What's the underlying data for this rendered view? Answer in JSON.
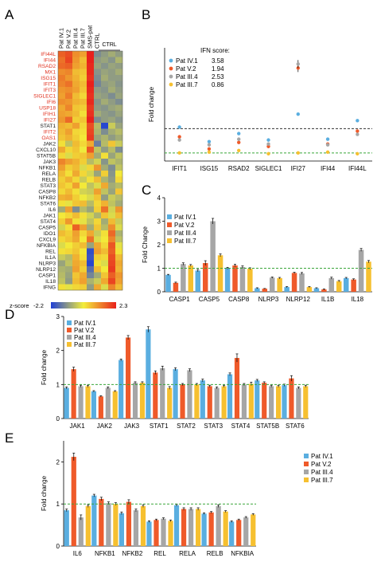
{
  "panel_labels": [
    "A",
    "B",
    "C",
    "D",
    "E"
  ],
  "colors": {
    "pat_iv1": "#5aaee0",
    "pat_v2": "#ef5a2a",
    "pat_iii4": "#a6a6a6",
    "pat_iii7": "#f6c030",
    "ref_line_green": "#3aa63a",
    "ref_line_black": "#333333"
  },
  "chart_data": [
    {
      "panel": "A",
      "type": "heatmap",
      "columns": [
        "Pat IV.1",
        "Pat V.2",
        "Pat III.4",
        "Pat III.7",
        "SMS-pat",
        "CTRL",
        "",
        "",
        ""
      ],
      "ctrl_label": "CTRL",
      "colorbar": {
        "label": "z-score",
        "min_label": "-2.2",
        "max_label": "2.3",
        "min": -2.2,
        "max": 2.3
      },
      "rows": [
        {
          "gene": "IFI44L",
          "red": true,
          "values": [
            1.6,
            1.8,
            1.1,
            0.9,
            2.3,
            -1.2,
            -1.0,
            -0.8,
            -1.0
          ]
        },
        {
          "gene": "IFI44",
          "red": true,
          "values": [
            1.4,
            1.9,
            1.0,
            0.6,
            2.3,
            -1.0,
            -0.9,
            -1.1,
            -0.7
          ]
        },
        {
          "gene": "RSAD2",
          "red": true,
          "values": [
            1.5,
            1.6,
            0.9,
            0.7,
            2.2,
            -0.9,
            -1.1,
            -0.9,
            -1.0
          ]
        },
        {
          "gene": "MX1",
          "red": true,
          "values": [
            1.1,
            1.2,
            0.6,
            0.5,
            2.2,
            -1.1,
            -0.9,
            -1.0,
            -0.8
          ]
        },
        {
          "gene": "ISG15",
          "red": true,
          "values": [
            1.3,
            1.0,
            0.7,
            0.4,
            2.1,
            -1.2,
            -0.8,
            -1.0,
            -1.0
          ]
        },
        {
          "gene": "IFIT1",
          "red": true,
          "values": [
            1.2,
            1.4,
            0.8,
            0.6,
            2.3,
            -1.3,
            -1.0,
            -0.9,
            -1.1
          ]
        },
        {
          "gene": "IFIT3",
          "red": true,
          "values": [
            1.0,
            1.1,
            0.9,
            0.5,
            2.2,
            -1.0,
            -1.1,
            -0.8,
            -1.0
          ]
        },
        {
          "gene": "SIGLEC1",
          "red": true,
          "values": [
            0.9,
            1.3,
            0.6,
            0.3,
            2.1,
            -0.9,
            -1.0,
            -1.2,
            -0.9
          ]
        },
        {
          "gene": "IFI6",
          "red": true,
          "values": [
            1.1,
            1.0,
            0.7,
            0.6,
            2.2,
            -1.1,
            -0.8,
            -1.0,
            -1.2
          ]
        },
        {
          "gene": "USP18",
          "red": true,
          "values": [
            0.8,
            1.2,
            0.5,
            0.4,
            2.0,
            -1.0,
            -1.1,
            -0.9,
            -0.8
          ]
        },
        {
          "gene": "IFIH1",
          "red": true,
          "values": [
            0.9,
            0.8,
            0.6,
            0.2,
            2.1,
            -0.8,
            -1.0,
            -1.1,
            -0.9
          ]
        },
        {
          "gene": "IFI27",
          "red": true,
          "values": [
            1.0,
            1.5,
            0.4,
            0.5,
            2.3,
            -1.2,
            -1.0,
            -0.9,
            -1.1
          ]
        },
        {
          "gene": "STAT1",
          "red": false,
          "values": [
            0.7,
            0.6,
            0.9,
            0.3,
            1.8,
            -0.6,
            -2.1,
            -0.4,
            -0.9
          ]
        },
        {
          "gene": "IFIT2",
          "red": true,
          "values": [
            0.6,
            0.9,
            0.3,
            0.2,
            1.9,
            -0.7,
            -1.2,
            -0.8,
            -0.6
          ]
        },
        {
          "gene": "OAS1",
          "red": true,
          "values": [
            0.5,
            0.7,
            0.4,
            0.1,
            2.0,
            -0.9,
            -0.7,
            -1.0,
            -0.8
          ]
        },
        {
          "gene": "JAK2",
          "red": false,
          "values": [
            0.2,
            -0.5,
            0.6,
            0.3,
            0.8,
            -1.4,
            -0.6,
            0.5,
            -0.4
          ]
        },
        {
          "gene": "CXCL10",
          "red": false,
          "values": [
            0.8,
            0.3,
            0.5,
            0.0,
            1.7,
            -0.5,
            -1.0,
            -0.6,
            -1.2
          ]
        },
        {
          "gene": "STAT5B",
          "red": false,
          "values": [
            0.3,
            -0.2,
            0.4,
            0.5,
            0.9,
            -0.8,
            0.2,
            -0.9,
            -0.5
          ]
        },
        {
          "gene": "JAK3",
          "red": false,
          "values": [
            1.2,
            0.9,
            0.7,
            0.4,
            -0.6,
            -0.3,
            -1.1,
            -0.5,
            -0.7
          ]
        },
        {
          "gene": "NFKB1",
          "red": false,
          "values": [
            0.9,
            0.4,
            0.6,
            -0.2,
            0.3,
            1.0,
            -0.8,
            -1.2,
            -0.5
          ]
        },
        {
          "gene": "RELA",
          "red": false,
          "values": [
            0.6,
            0.2,
            0.8,
            0.3,
            -0.3,
            -0.9,
            0.4,
            -1.1,
            0.1
          ]
        },
        {
          "gene": "RELB",
          "red": false,
          "values": [
            0.4,
            0.7,
            0.3,
            -0.4,
            0.2,
            0.6,
            -0.7,
            -1.0,
            0.3
          ]
        },
        {
          "gene": "STAT3",
          "red": false,
          "values": [
            0.5,
            0.3,
            0.9,
            0.1,
            -0.5,
            -0.2,
            0.8,
            -0.8,
            -0.6
          ]
        },
        {
          "gene": "CASP8",
          "red": false,
          "values": [
            0.3,
            0.6,
            0.2,
            -0.3,
            -0.4,
            0.9,
            -0.5,
            -0.9,
            0.5
          ]
        },
        {
          "gene": "NFKB2",
          "red": false,
          "values": [
            0.7,
            0.8,
            0.4,
            0.0,
            -0.2,
            0.5,
            -1.0,
            -0.4,
            -0.6
          ]
        },
        {
          "gene": "STAT6",
          "red": false,
          "values": [
            0.2,
            -0.1,
            0.5,
            0.6,
            -0.6,
            0.3,
            0.7,
            -0.5,
            -0.8
          ]
        },
        {
          "gene": "IL6",
          "red": false,
          "values": [
            -0.8,
            0.9,
            -1.2,
            -0.6,
            -0.9,
            0.4,
            1.4,
            -0.3,
            1.0
          ]
        },
        {
          "gene": "JAK1",
          "red": false,
          "values": [
            0.1,
            0.3,
            0.6,
            0.2,
            -0.3,
            -0.7,
            0.5,
            -0.2,
            0.6
          ]
        },
        {
          "gene": "STAT4",
          "red": false,
          "values": [
            0.4,
            1.0,
            0.2,
            -0.1,
            -0.5,
            0.3,
            -0.8,
            0.6,
            -0.4
          ]
        },
        {
          "gene": "CASP5",
          "red": false,
          "values": [
            -0.3,
            0.2,
            1.6,
            0.9,
            -0.8,
            0.5,
            -0.6,
            1.1,
            -0.2
          ]
        },
        {
          "gene": "IDO1",
          "red": false,
          "values": [
            0.6,
            0.4,
            0.9,
            0.3,
            0.8,
            -0.4,
            0.2,
            1.5,
            -0.7
          ]
        },
        {
          "gene": "CXCL9",
          "red": false,
          "values": [
            0.3,
            0.5,
            0.8,
            0.1,
            1.4,
            -0.2,
            0.1,
            1.2,
            -0.5
          ]
        },
        {
          "gene": "NFKBIA",
          "red": false,
          "values": [
            -0.2,
            0.1,
            0.4,
            0.6,
            -0.9,
            0.8,
            0.3,
            1.7,
            -0.1
          ]
        },
        {
          "gene": "REL",
          "red": false,
          "values": [
            0.2,
            0.3,
            0.5,
            0.1,
            -2.0,
            0.9,
            0.6,
            1.6,
            0.2
          ]
        },
        {
          "gene": "IL1A",
          "red": false,
          "values": [
            -0.4,
            -0.6,
            0.7,
            0.2,
            -1.9,
            0.4,
            0.3,
            1.8,
            0.6
          ]
        },
        {
          "gene": "NLRP3",
          "red": false,
          "values": [
            -0.9,
            -0.5,
            0.8,
            0.6,
            -2.1,
            0.2,
            -0.2,
            1.9,
            0.8
          ]
        },
        {
          "gene": "NLRP12",
          "red": false,
          "values": [
            -0.7,
            -0.8,
            0.9,
            0.4,
            -1.6,
            0.6,
            0.1,
            2.0,
            0.7
          ]
        },
        {
          "gene": "CASP1",
          "red": false,
          "values": [
            -0.6,
            -0.9,
            0.5,
            0.8,
            -1.3,
            -0.8,
            0.5,
            1.6,
            1.0
          ]
        },
        {
          "gene": "IL18",
          "red": false,
          "values": [
            -0.5,
            -1.0,
            0.6,
            0.9,
            -0.7,
            -0.4,
            0.8,
            1.9,
            0.9
          ]
        },
        {
          "gene": "IFNG",
          "red": false,
          "values": [
            0.2,
            -0.1,
            0.3,
            0.4,
            -1.0,
            0.8,
            -0.2,
            1.2,
            0.6
          ]
        }
      ]
    },
    {
      "panel": "B",
      "type": "scatter",
      "ylabel": "Fold change",
      "ylim": [
        0,
        14
      ],
      "categories": [
        "IFIT1",
        "ISG15",
        "RSAD2",
        "SIGLEC1",
        "IFI27",
        "IFI44",
        "IFI44L"
      ],
      "ref_lines": [
        {
          "y": 4,
          "style": "dashed",
          "color": "#333333"
        },
        {
          "y": 1,
          "style": "dashed",
          "color": "#3aa63a"
        }
      ],
      "ifn_score_title": "IFN score:",
      "series": [
        {
          "name": "Pat IV.1",
          "score": "3.58",
          "color": "#5aaee0",
          "values": [
            4.2,
            2.4,
            3.4,
            2.6,
            5.8,
            2.7,
            5.0
          ]
        },
        {
          "name": "Pat V.2",
          "score": "1.94",
          "color": "#ef5a2a",
          "values": [
            3.0,
            1.5,
            2.3,
            1.8,
            11.5,
            2.1,
            3.7
          ]
        },
        {
          "name": "Pat III.4",
          "score": "2.53",
          "color": "#a6a6a6",
          "values": [
            2.6,
            2.0,
            2.7,
            2.1,
            12.0,
            2.0,
            3.3
          ]
        },
        {
          "name": "Pat III.7",
          "score": "0.86",
          "color": "#f6c030",
          "values": [
            1.0,
            1.1,
            1.3,
            0.9,
            1.0,
            1.1,
            0.9
          ]
        }
      ]
    },
    {
      "panel": "C",
      "type": "bar",
      "ylabel": "Fold Change",
      "ylim": [
        0,
        4
      ],
      "yticks": [
        0,
        1,
        2,
        3,
        4
      ],
      "categories": [
        "CASP1",
        "CASP5",
        "CASP8",
        "NLRP3",
        "NLRP12",
        "IL1B",
        "IL18"
      ],
      "ref_line": 1,
      "series": [
        {
          "name": "Pat IV.1",
          "color": "#5aaee0",
          "values": [
            0.72,
            0.9,
            1.0,
            0.15,
            0.2,
            0.15,
            0.58
          ],
          "errors": [
            0.02,
            0.05,
            0.04,
            0.02,
            0.02,
            0.02,
            0.03
          ]
        },
        {
          "name": "Pat V.2",
          "color": "#ef5a2a",
          "values": [
            0.38,
            1.22,
            1.12,
            0.13,
            0.8,
            0.1,
            0.52
          ],
          "errors": [
            0.03,
            0.1,
            0.05,
            0.01,
            0.03,
            0.02,
            0.03
          ]
        },
        {
          "name": "Pat III.4",
          "color": "#a6a6a6",
          "values": [
            1.18,
            3.0,
            1.05,
            0.6,
            0.78,
            0.58,
            1.78
          ],
          "errors": [
            0.05,
            0.12,
            0.05,
            0.03,
            0.04,
            0.04,
            0.06
          ]
        },
        {
          "name": "Pat III.7",
          "color": "#f6c030",
          "values": [
            1.12,
            1.55,
            0.98,
            0.58,
            0.2,
            0.45,
            1.28
          ],
          "errors": [
            0.04,
            0.06,
            0.04,
            0.03,
            0.02,
            0.03,
            0.05
          ]
        }
      ]
    },
    {
      "panel": "D",
      "type": "bar",
      "ylabel": "Fold change",
      "ylim": [
        0,
        3
      ],
      "yticks": [
        0,
        1,
        2,
        3
      ],
      "categories": [
        "JAK1",
        "JAK2",
        "JAK3",
        "STAT1",
        "STAT2",
        "STAT3",
        "STAT4",
        "STAT5B",
        "STAT6"
      ],
      "ref_line": 1,
      "series": [
        {
          "name": "Pat IV.1",
          "color": "#5aaee0",
          "values": [
            0.9,
            0.8,
            1.72,
            2.62,
            1.45,
            1.12,
            1.3,
            1.12,
            0.98
          ],
          "errors": [
            0.03,
            0.02,
            0.03,
            0.08,
            0.04,
            0.04,
            0.04,
            0.03,
            0.03
          ]
        },
        {
          "name": "Pat V.2",
          "color": "#ef5a2a",
          "values": [
            1.45,
            0.65,
            2.38,
            1.35,
            1.0,
            0.95,
            1.78,
            1.05,
            1.18
          ],
          "errors": [
            0.06,
            0.02,
            0.06,
            0.05,
            0.03,
            0.03,
            0.12,
            0.03,
            0.08
          ]
        },
        {
          "name": "Pat III.4",
          "color": "#a6a6a6",
          "values": [
            0.95,
            0.9,
            1.05,
            1.48,
            1.42,
            0.9,
            1.0,
            0.95,
            0.9
          ],
          "errors": [
            0.03,
            0.03,
            0.03,
            0.06,
            0.04,
            0.03,
            0.03,
            0.03,
            0.03
          ]
        },
        {
          "name": "Pat III.7",
          "color": "#f6c030",
          "values": [
            0.95,
            0.8,
            1.05,
            0.9,
            1.0,
            0.95,
            1.02,
            0.95,
            0.95
          ],
          "errors": [
            0.03,
            0.02,
            0.03,
            0.04,
            0.03,
            0.03,
            0.05,
            0.03,
            0.03
          ]
        }
      ]
    },
    {
      "panel": "E",
      "type": "bar",
      "ylabel": "Fold change",
      "ylim": [
        0,
        2.5
      ],
      "yticks": [
        0,
        1,
        2
      ],
      "categories": [
        "IL6",
        "NFKB1",
        "NFKB2",
        "REL",
        "RELA",
        "RELB",
        "NFKBIA"
      ],
      "ref_line": 1,
      "series": [
        {
          "name": "Pat IV.1",
          "color": "#5aaee0",
          "values": [
            0.85,
            1.2,
            0.78,
            0.58,
            0.97,
            0.77,
            0.58
          ],
          "errors": [
            0.03,
            0.03,
            0.03,
            0.02,
            0.02,
            0.02,
            0.02
          ]
        },
        {
          "name": "Pat V.2",
          "color": "#ef5a2a",
          "values": [
            2.12,
            1.12,
            1.05,
            0.62,
            0.88,
            0.8,
            0.62
          ],
          "errors": [
            0.09,
            0.04,
            0.05,
            0.02,
            0.03,
            0.02,
            0.02
          ]
        },
        {
          "name": "Pat III.4",
          "color": "#a6a6a6",
          "values": [
            0.68,
            1.02,
            0.85,
            0.65,
            0.88,
            0.95,
            0.68
          ],
          "errors": [
            0.06,
            0.03,
            0.03,
            0.02,
            0.03,
            0.03,
            0.02
          ]
        },
        {
          "name": "Pat III.7",
          "color": "#f6c030",
          "values": [
            0.95,
            1.0,
            0.95,
            0.6,
            0.88,
            0.82,
            0.75
          ],
          "errors": [
            0.03,
            0.03,
            0.03,
            0.02,
            0.03,
            0.02,
            0.02
          ]
        }
      ]
    }
  ]
}
